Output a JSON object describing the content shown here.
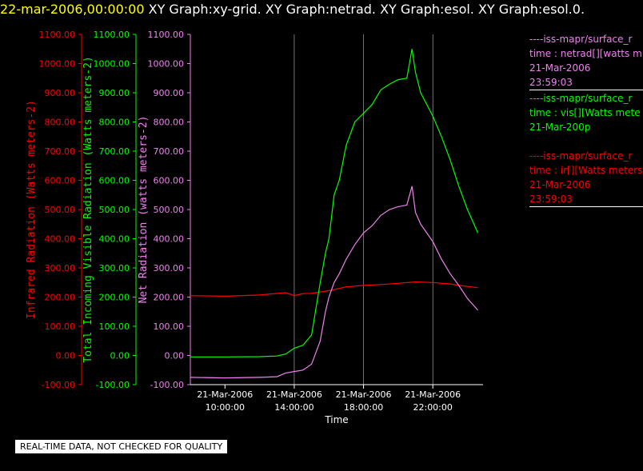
{
  "header": {
    "date": "22-mar-2006,00:00:00",
    "graphs": "XY Graph:xy-grid.  XY Graph:netrad.  XY Graph:esol.  XY Graph:esol.0."
  },
  "colors": {
    "ir": "#ff0000",
    "vis": "#00ff00",
    "net": "#ee82ee",
    "axis": "#ffffff",
    "grid": "#ffffff",
    "title_date": "#ffff00"
  },
  "legend": {
    "net": {
      "line1": "----iss-mapr/surface_r",
      "line2": "time : netrad[][watts m",
      "line3": "21-Mar-2006",
      "line4": "23:59:03"
    },
    "vis": {
      "line1": "----iss-mapr/surface_r",
      "line2": "time : vis[][Watts mete",
      "line3": "21-Mar-200p"
    },
    "ir": {
      "line1": "----iss-mapr/surface_r",
      "line2": "time : ir[][Watts meters",
      "line3": "21-Mar-2006",
      "line4": "23:59:03"
    }
  },
  "footer": {
    "quality_note": "REAL-TIME DATA, NOT CHECKED FOR QUALITY"
  },
  "chart_data": {
    "type": "line",
    "xlabel": "Time",
    "x_ticks": [
      {
        "date": "21-Mar-2006",
        "time": "10:00:00",
        "hour": 10
      },
      {
        "date": "21-Mar-2006",
        "time": "14:00:00",
        "hour": 14
      },
      {
        "date": "21-Mar-2006",
        "time": "18:00:00",
        "hour": 18
      },
      {
        "date": "21-Mar-2006",
        "time": "22:00:00",
        "hour": 22
      }
    ],
    "xlim_hours": [
      8,
      24.9
    ],
    "ylim": [
      -100,
      1100
    ],
    "y_ticks": [
      "1100.00",
      "1000.00",
      "900.00",
      "800.00",
      "700.00",
      "600.00",
      "500.00",
      "400.00",
      "300.00",
      "200.00",
      "100.00",
      "0.00",
      "-100.00"
    ],
    "y_axes": [
      {
        "id": "ir",
        "label": "Infrared Radiation (Watts meters-2)"
      },
      {
        "id": "vis",
        "label": "Total Incoming Visible Radiation (Watts meters-2)"
      },
      {
        "id": "net",
        "label": "Net Radiation (watts meters-2)"
      }
    ],
    "vertical_grid_hours": [
      14,
      18,
      22
    ],
    "series": [
      {
        "id": "ir",
        "name": "ir",
        "x_hours": [
          8,
          10,
          12,
          13.5,
          14,
          14.5,
          15,
          16,
          17,
          18,
          19,
          20,
          21,
          22,
          23,
          23.5,
          24.6
        ],
        "values": [
          205,
          203,
          207,
          215,
          205,
          212,
          213,
          222,
          235,
          240,
          243,
          247,
          252,
          250,
          245,
          240,
          232
        ]
      },
      {
        "id": "vis",
        "name": "vis",
        "x_hours": [
          8,
          10,
          12,
          13,
          13.5,
          14,
          14.5,
          15,
          15.5,
          15.8,
          16,
          16.3,
          16.6,
          17,
          17.5,
          18,
          18.5,
          19,
          19.5,
          20,
          20.5,
          20.8,
          21,
          21.3,
          22,
          22.5,
          23,
          23.5,
          24,
          24.6
        ],
        "values": [
          -5,
          -5,
          -4,
          -2,
          5,
          25,
          35,
          70,
          250,
          350,
          400,
          550,
          600,
          720,
          800,
          830,
          860,
          910,
          930,
          945,
          950,
          1050,
          970,
          900,
          820,
          750,
          670,
          580,
          500,
          420
        ]
      },
      {
        "id": "net",
        "name": "netrad",
        "x_hours": [
          8,
          10,
          12,
          13,
          13.5,
          14,
          14.5,
          15,
          15.5,
          15.8,
          16,
          16.3,
          16.6,
          17,
          17.5,
          18,
          18.5,
          19,
          19.5,
          20,
          20.5,
          20.8,
          21,
          21.3,
          22,
          22.5,
          23,
          23.5,
          24,
          24.6
        ],
        "values": [
          -75,
          -77,
          -75,
          -73,
          -60,
          -55,
          -50,
          -30,
          50,
          150,
          200,
          250,
          280,
          330,
          380,
          420,
          445,
          480,
          500,
          510,
          515,
          580,
          490,
          450,
          390,
          330,
          280,
          240,
          195,
          155
        ]
      }
    ]
  }
}
